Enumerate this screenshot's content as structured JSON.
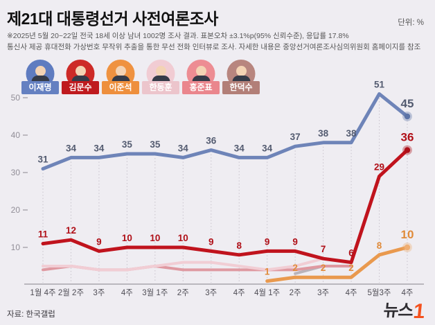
{
  "header": {
    "title": "제21대 대통령선거 사전여론조사",
    "unit": "단위: %",
    "note_line1": "※2025년 5월 20~22일 전국 18세 이상 남녀 1002명 조사 결과. 표본오차 ±3.1%p(95% 신뢰수준), 응답률 17.8%",
    "note_line2": "통신사 제공 휴대전화 가상번호 무작위 추출을 통한 무선 전화 인터뷰로 조사. 자세한 내용은 중앙선거여론조사심의위원회 홈페이지를 참조"
  },
  "legend": {
    "candidates": [
      {
        "name": "이재명",
        "circle_color": "#5f7cc0",
        "badge_color": "#6480c1"
      },
      {
        "name": "김문수",
        "circle_color": "#cd2a27",
        "badge_color": "#bf1a1e"
      },
      {
        "name": "이준석",
        "circle_color": "#ef9240",
        "badge_color": "#ee8f3d"
      },
      {
        "name": "한동훈",
        "circle_color": "#f1ccd3",
        "badge_color": "#ecc5cc"
      },
      {
        "name": "홍준표",
        "circle_color": "#ed8d93",
        "badge_color": "#ea868d"
      },
      {
        "name": "한덕수",
        "circle_color": "#b8867f",
        "badge_color": "#b27f78"
      }
    ]
  },
  "chart_data": {
    "type": "line",
    "title": "제21대 대통령선거 사전여론조사",
    "unit": "%",
    "categories": [
      "1월 4주",
      "2월 2주",
      "3주",
      "4주",
      "3월 1주",
      "2주",
      "3주",
      "4주",
      "4월 1주",
      "2주",
      "3주",
      "4주",
      "5월3주",
      "4주"
    ],
    "yticks": [
      10,
      20,
      30,
      40,
      50
    ],
    "ylim": [
      0,
      55
    ],
    "grid": "dotted-vertical",
    "legend_position": "top",
    "series": [
      {
        "name": "이재명",
        "color": "#6e84b8",
        "dot_color": "#5c73a6",
        "label_color": "#535b70",
        "values": [
          31,
          34,
          34,
          35,
          35,
          34,
          36,
          34,
          34,
          37,
          38,
          38,
          51,
          45
        ],
        "labels": true,
        "end_dot": true,
        "emphasize_last": true
      },
      {
        "name": "김문수",
        "color": "#c0131d",
        "dot_color": "#ad0f18",
        "label_color": "#b01018",
        "values": [
          11,
          12,
          9,
          10,
          10,
          10,
          9,
          8,
          9,
          9,
          7,
          6,
          29,
          36
        ],
        "labels": true,
        "end_dot": true,
        "emphasize_last": true
      },
      {
        "name": "이준석",
        "color": "#e9994e",
        "dot_color": "#efae73",
        "label_color": "#e08b3a",
        "values": [
          null,
          null,
          null,
          null,
          null,
          null,
          null,
          null,
          1,
          2,
          2,
          2,
          8,
          10
        ],
        "labels": true,
        "end_dot": true,
        "emphasize_last": true
      },
      {
        "name": "한동훈",
        "color": "#f1cdd4",
        "label_color": "#f1cdd4",
        "values": [
          5,
          5,
          4,
          4,
          5,
          6,
          6,
          5,
          4,
          5,
          7,
          null,
          null,
          null
        ],
        "labels": false,
        "end_dot": false
      },
      {
        "name": "홍준표",
        "color": "#df99a1",
        "label_color": "#df99a1",
        "values": [
          4,
          5,
          4,
          4,
          5,
          4,
          4,
          4,
          4,
          4,
          5,
          5,
          null,
          null
        ],
        "labels": false,
        "end_dot": false
      },
      {
        "name": "한덕수",
        "color": "#b9b3ba",
        "label_color": "#b9b3ba",
        "values": [
          null,
          null,
          null,
          null,
          null,
          null,
          null,
          null,
          null,
          3,
          5,
          null,
          null,
          null
        ],
        "labels": false,
        "end_dot": false
      }
    ]
  },
  "footer": {
    "source": "자료: 한국갤럽",
    "logo_text": "뉴스",
    "logo_one": "1"
  }
}
